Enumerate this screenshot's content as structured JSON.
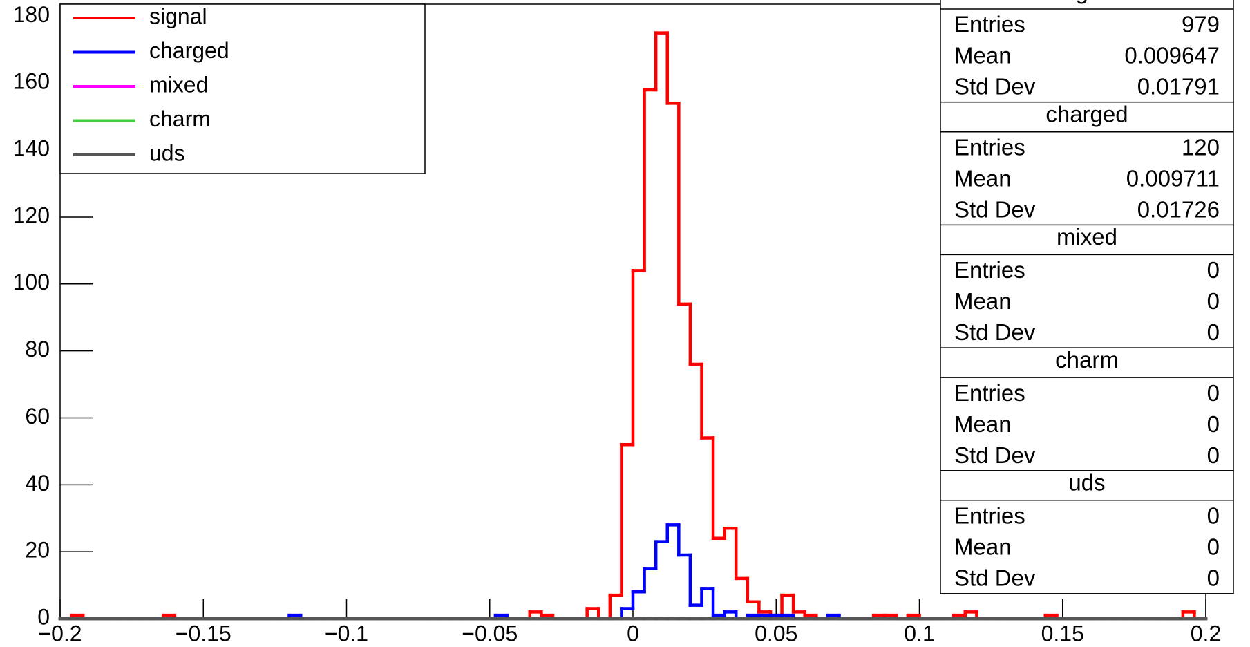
{
  "chart_data": {
    "type": "histogram",
    "bins": [
      -0.2,
      -0.196,
      -0.192,
      -0.188,
      -0.184,
      -0.18,
      -0.176,
      -0.172,
      -0.168,
      -0.164,
      -0.16,
      -0.156,
      -0.152,
      -0.148,
      -0.144,
      -0.14,
      -0.136,
      -0.132,
      -0.128,
      -0.124,
      -0.12,
      -0.116,
      -0.112,
      -0.108,
      -0.104,
      -0.1,
      -0.096,
      -0.092,
      -0.088,
      -0.084,
      -0.08,
      -0.076,
      -0.072,
      -0.068,
      -0.064,
      -0.06,
      -0.056,
      -0.052,
      -0.048,
      -0.044,
      -0.04,
      -0.036,
      -0.032,
      -0.028,
      -0.024,
      -0.02,
      -0.016,
      -0.012,
      -0.008,
      -0.004,
      0,
      0.004,
      0.008,
      0.012,
      0.016,
      0.02,
      0.024,
      0.028,
      0.032,
      0.036,
      0.04,
      0.044,
      0.048,
      0.052,
      0.056,
      0.06,
      0.064,
      0.068,
      0.072,
      0.076,
      0.08,
      0.084,
      0.088,
      0.092,
      0.096,
      0.1,
      0.104,
      0.108,
      0.112,
      0.116,
      0.12,
      0.124,
      0.128,
      0.132,
      0.136,
      0.14,
      0.144,
      0.148,
      0.152,
      0.156,
      0.16,
      0.164,
      0.168,
      0.172,
      0.176,
      0.18,
      0.184,
      0.188,
      0.192,
      0.196,
      0.2
    ],
    "series": [
      {
        "name": "signal",
        "color": "#ff0000",
        "values": [
          0,
          1,
          0,
          0,
          0,
          0,
          0,
          0,
          0,
          1,
          0,
          0,
          0,
          0,
          0,
          0,
          0,
          0,
          0,
          0,
          0,
          0,
          0,
          0,
          0,
          0,
          0,
          0,
          0,
          0,
          0,
          0,
          0,
          0,
          0,
          0,
          0,
          0,
          0,
          0,
          0,
          2,
          1,
          0,
          0,
          0,
          3,
          0,
          7,
          52,
          104,
          158,
          175,
          154,
          94,
          76,
          54,
          24,
          27,
          12,
          5,
          2,
          1,
          7,
          2,
          1,
          0,
          0,
          0,
          0,
          0,
          1,
          1,
          0,
          1,
          0,
          0,
          0,
          1,
          2,
          0,
          0,
          0,
          0,
          0,
          0,
          1,
          0,
          0,
          0,
          0,
          0,
          0,
          0,
          0,
          0,
          0,
          0,
          2,
          0
        ]
      },
      {
        "name": "charged",
        "color": "#0000ff",
        "values": [
          0,
          0,
          0,
          0,
          0,
          0,
          0,
          0,
          0,
          0,
          0,
          0,
          0,
          0,
          0,
          0,
          0,
          0,
          0,
          0,
          1,
          0,
          0,
          0,
          0,
          0,
          0,
          0,
          0,
          0,
          0,
          0,
          0,
          0,
          0,
          0,
          0,
          0,
          1,
          0,
          0,
          0,
          0,
          0,
          0,
          0,
          0,
          0,
          0,
          3,
          8,
          15,
          23,
          28,
          19,
          4,
          9,
          1,
          2,
          0,
          1,
          1,
          1,
          1,
          0,
          0,
          0,
          1,
          0,
          0,
          0,
          0,
          0,
          0,
          0,
          0,
          0,
          0,
          0,
          0,
          0,
          0,
          0,
          0,
          0,
          0,
          0,
          0,
          0,
          0,
          0,
          0,
          0,
          0,
          0,
          0,
          0,
          0,
          0,
          0
        ]
      },
      {
        "name": "mixed",
        "color": "#ff00ff",
        "values": [
          0,
          0,
          0,
          0,
          0,
          0,
          0,
          0,
          0,
          0,
          0,
          0,
          0,
          0,
          0,
          0,
          0,
          0,
          0,
          0,
          0,
          0,
          0,
          0,
          0,
          0,
          0,
          0,
          0,
          0,
          0,
          0,
          0,
          0,
          0,
          0,
          0,
          0,
          0,
          0,
          0,
          0,
          0,
          0,
          0,
          0,
          0,
          0,
          0,
          0,
          0,
          0,
          0,
          0,
          0,
          0,
          0,
          0,
          0,
          0,
          0,
          0,
          0,
          0,
          0,
          0,
          0,
          0,
          0,
          0,
          0,
          0,
          0,
          0,
          0,
          0,
          0,
          0,
          0,
          0,
          0,
          0,
          0,
          0,
          0,
          0,
          0,
          0,
          0,
          0,
          0,
          0,
          0,
          0,
          0,
          0,
          0,
          0,
          0,
          0
        ]
      },
      {
        "name": "charm",
        "color": "#44cc44",
        "values": [
          0,
          0,
          0,
          0,
          0,
          0,
          0,
          0,
          0,
          0,
          0,
          0,
          0,
          0,
          0,
          0,
          0,
          0,
          0,
          0,
          0,
          0,
          0,
          0,
          0,
          0,
          0,
          0,
          0,
          0,
          0,
          0,
          0,
          0,
          0,
          0,
          0,
          0,
          0,
          0,
          0,
          0,
          0,
          0,
          0,
          0,
          0,
          0,
          0,
          0,
          0,
          0,
          0,
          0,
          0,
          0,
          0,
          0,
          0,
          0,
          0,
          0,
          0,
          0,
          0,
          0,
          0,
          0,
          0,
          0,
          0,
          0,
          0,
          0,
          0,
          0,
          0,
          0,
          0,
          0,
          0,
          0,
          0,
          0,
          0,
          0,
          0,
          0,
          0,
          0,
          0,
          0,
          0,
          0,
          0,
          0,
          0,
          0,
          0,
          0
        ]
      },
      {
        "name": "uds",
        "color": "#555555",
        "values": [
          0,
          0,
          0,
          0,
          0,
          0,
          0,
          0,
          0,
          0,
          0,
          0,
          0,
          0,
          0,
          0,
          0,
          0,
          0,
          0,
          0,
          0,
          0,
          0,
          0,
          0,
          0,
          0,
          0,
          0,
          0,
          0,
          0,
          0,
          0,
          0,
          0,
          0,
          0,
          0,
          0,
          0,
          0,
          0,
          0,
          0,
          0,
          0,
          0,
          0,
          0,
          0,
          0,
          0,
          0,
          0,
          0,
          0,
          0,
          0,
          0,
          0,
          0,
          0,
          0,
          0,
          0,
          0,
          0,
          0,
          0,
          0,
          0,
          0,
          0,
          0,
          0,
          0,
          0,
          0,
          0,
          0,
          0,
          0,
          0,
          0,
          0,
          0,
          0,
          0,
          0,
          0,
          0,
          0,
          0,
          0,
          0,
          0,
          0,
          0
        ]
      }
    ],
    "xlim": [
      -0.2,
      0.2
    ],
    "xticks": [
      {
        "value": -0.2,
        "label": "−0.2"
      },
      {
        "value": -0.15,
        "label": "−0.15"
      },
      {
        "value": -0.1,
        "label": "−0.1"
      },
      {
        "value": -0.05,
        "label": "−0.05"
      },
      0,
      0.05,
      0.1,
      0.15,
      0.2
    ],
    "ylim": [
      0,
      183.6
    ],
    "yticks": [
      0,
      20,
      40,
      60,
      80,
      100,
      120,
      140,
      160,
      180
    ],
    "legend": "top-left",
    "stats": [
      {
        "title": "Signal",
        "rows": [
          {
            "label": "Entries",
            "value": 979
          },
          {
            "label": "Mean",
            "value": 0.009647
          },
          {
            "label": "Std Dev",
            "value": 0.01791
          }
        ]
      },
      {
        "title": "charged",
        "rows": [
          {
            "label": "Entries",
            "value": 120
          },
          {
            "label": "Mean",
            "value": 0.009711
          },
          {
            "label": "Std Dev",
            "value": 0.01726
          }
        ]
      },
      {
        "title": "mixed",
        "rows": [
          {
            "label": "Entries",
            "value": 0
          },
          {
            "label": "Mean",
            "value": 0
          },
          {
            "label": "Std Dev",
            "value": 0
          }
        ]
      },
      {
        "title": "charm",
        "rows": [
          {
            "label": "Entries",
            "value": 0
          },
          {
            "label": "Mean",
            "value": 0
          },
          {
            "label": "Std Dev",
            "value": 0
          }
        ]
      },
      {
        "title": "uds",
        "rows": [
          {
            "label": "Entries",
            "value": 0
          },
          {
            "label": "Mean",
            "value": 0
          },
          {
            "label": "Std Dev",
            "value": 0
          }
        ]
      }
    ]
  }
}
